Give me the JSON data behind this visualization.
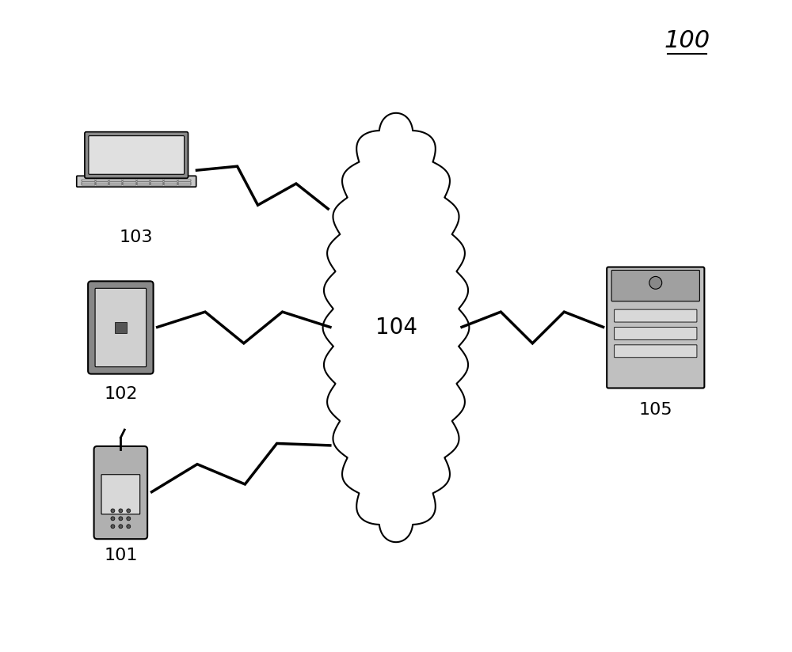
{
  "title_label": "100",
  "cloud_label": "104",
  "device_labels": [
    "103",
    "102",
    "101"
  ],
  "server_label": "105",
  "bg_color": "#ffffff",
  "line_color": "#000000",
  "fill_color": "#ffffff",
  "gray_light": "#d0d0d0",
  "gray_mid": "#a0a0a0",
  "gray_dark": "#505050"
}
